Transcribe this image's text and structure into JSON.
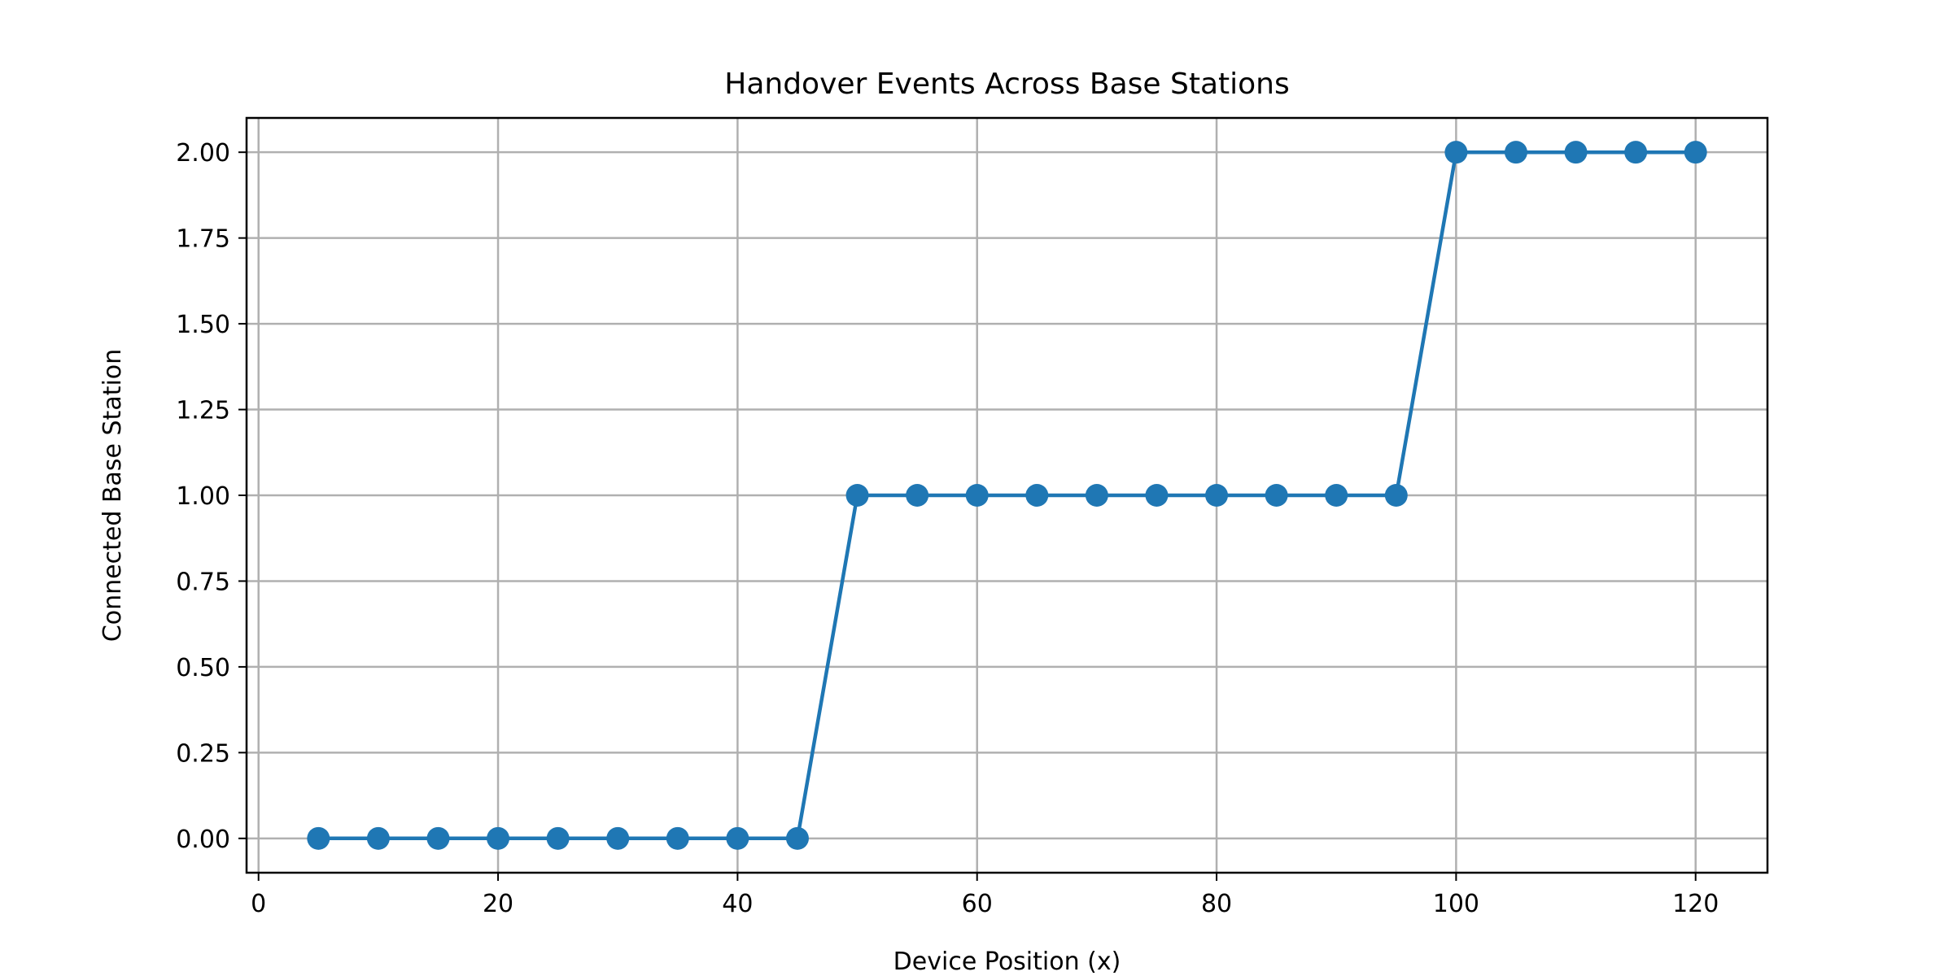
{
  "chart_data": {
    "type": "line",
    "title": "Handover Events Across Base Stations",
    "xlabel": "Device Position (x)",
    "ylabel": "Connected Base Station",
    "xlim": [
      -1,
      126
    ],
    "ylim": [
      -0.1,
      2.1
    ],
    "xticks": [
      0,
      20,
      40,
      60,
      80,
      100,
      120
    ],
    "xtick_labels": [
      "0",
      "20",
      "40",
      "60",
      "80",
      "100",
      "120"
    ],
    "yticks": [
      0,
      0.25,
      0.5,
      0.75,
      1,
      1.25,
      1.5,
      1.75,
      2
    ],
    "ytick_labels": [
      "0.00",
      "0.25",
      "0.50",
      "0.75",
      "1.00",
      "1.25",
      "1.50",
      "1.75",
      "2.00"
    ],
    "grid": true,
    "series": [
      {
        "color": "#1f77b4",
        "marker": "circle",
        "x": [
          5,
          10,
          15,
          20,
          25,
          30,
          35,
          40,
          45,
          50,
          55,
          60,
          65,
          70,
          75,
          80,
          85,
          90,
          95,
          100,
          105,
          110,
          115,
          120
        ],
        "y": [
          0,
          0,
          0,
          0,
          0,
          0,
          0,
          0,
          0,
          1,
          1,
          1,
          1,
          1,
          1,
          1,
          1,
          1,
          1,
          2,
          2,
          2,
          2,
          2
        ]
      }
    ]
  }
}
